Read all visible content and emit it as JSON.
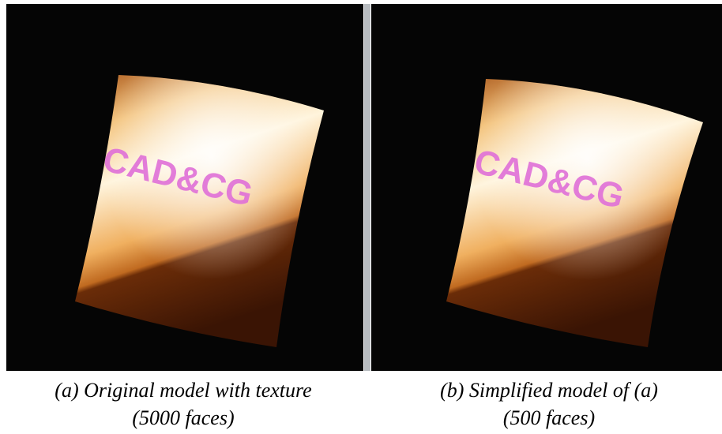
{
  "panels": [
    {
      "texture_text": "CAD&CG",
      "caption": [
        "(a) Original model with texture",
        "(5000 faces)"
      ]
    },
    {
      "texture_text": "CAD&CG",
      "caption": [
        "(b) Simplified model of (a)",
        "(500 faces)"
      ]
    }
  ]
}
